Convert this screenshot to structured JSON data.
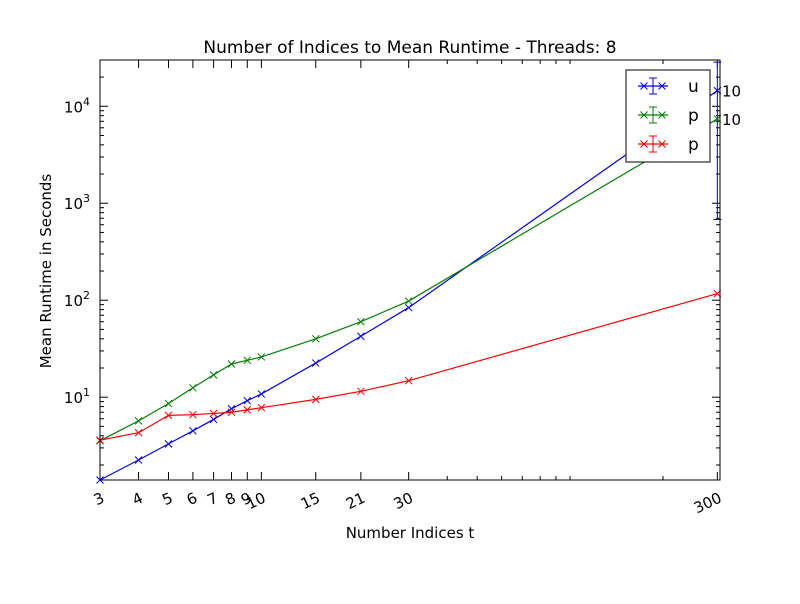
{
  "chart_data": {
    "type": "line",
    "title": "Number of Indices to Mean Runtime - Threads: 8",
    "xlabel": "Number Indices t",
    "ylabel": "Mean Runtime in Seconds",
    "x_scale": "log",
    "y_scale": "log",
    "xlim": [
      3,
      306
    ],
    "ylim": [
      1.4,
      30000
    ],
    "x_ticks": [
      3,
      4,
      5,
      6,
      7,
      8,
      9,
      10,
      15,
      21,
      30,
      300
    ],
    "x_tick_labels": [
      "3",
      "4",
      "5",
      "6",
      "7",
      "8",
      "9",
      "10",
      "15",
      "21",
      "30",
      "300"
    ],
    "y_ticks": [
      10,
      100,
      1000,
      10000
    ],
    "y_tick_labels": [
      {
        "base": "10",
        "exp": "1"
      },
      {
        "base": "10",
        "exp": "2"
      },
      {
        "base": "10",
        "exp": "3"
      },
      {
        "base": "10",
        "exp": "4"
      }
    ],
    "grid": false,
    "legend_position": "top-right",
    "side_annotations": [
      {
        "text": "10",
        "y": 14500
      },
      {
        "text": "10",
        "y": 7400
      }
    ],
    "series": [
      {
        "name": "u",
        "color": "#0000ff",
        "x": [
          3,
          4,
          5,
          6,
          7,
          8,
          9,
          10,
          15,
          21,
          30,
          300
        ],
        "y": [
          1.4,
          2.25,
          3.3,
          4.5,
          5.9,
          7.6,
          9.2,
          10.8,
          22.5,
          42.5,
          84,
          14500
        ],
        "error": [
          null,
          null,
          null,
          null,
          null,
          null,
          null,
          null,
          null,
          null,
          null,
          [
            680,
            28500
          ]
        ]
      },
      {
        "name": "p",
        "color": "#008000",
        "x": [
          3,
          4,
          5,
          6,
          7,
          8,
          9,
          10,
          15,
          21,
          30,
          300
        ],
        "y": [
          3.55,
          5.7,
          8.6,
          12.5,
          17,
          22,
          24,
          26,
          40,
          60,
          98,
          7400
        ],
        "error": []
      },
      {
        "name": "p",
        "color": "#ff0000",
        "x": [
          3,
          4,
          5,
          6,
          7,
          8,
          9,
          10,
          15,
          21,
          30,
          300
        ],
        "y": [
          3.6,
          4.3,
          6.5,
          6.6,
          6.8,
          7.0,
          7.4,
          7.8,
          9.5,
          11.5,
          14.8,
          117
        ],
        "error": []
      }
    ]
  }
}
